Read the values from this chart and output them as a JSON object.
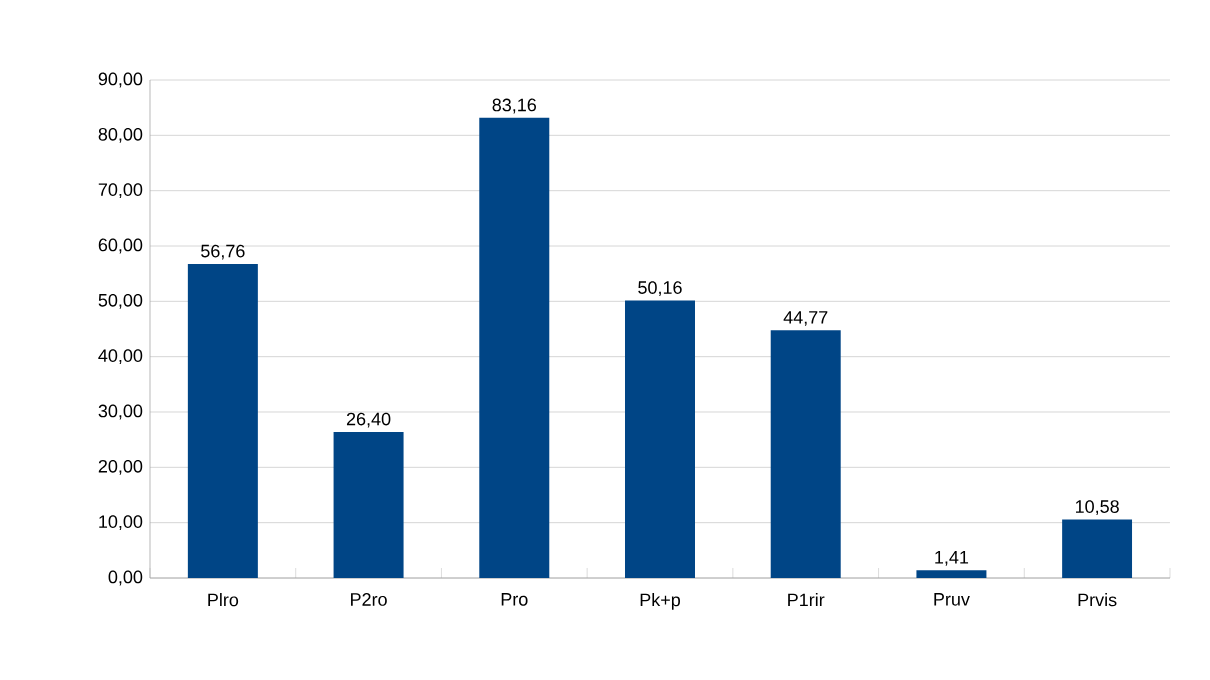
{
  "chart_data": {
    "type": "bar",
    "categories": [
      "Plro",
      "P2ro",
      "Pro",
      "Pk+p",
      "P1rir",
      "Pruv",
      "Prvis"
    ],
    "values": [
      56.76,
      26.4,
      83.16,
      50.16,
      44.77,
      1.41,
      10.58
    ],
    "value_labels": [
      "56,76",
      "26,40",
      "83,16",
      "50,16",
      "44,77",
      "1,41",
      "10,58"
    ],
    "color": "#004586",
    "ylim": [
      0,
      90
    ],
    "yticks": [
      {
        "value": 0,
        "label": "0,00"
      },
      {
        "value": 10,
        "label": "10,00"
      },
      {
        "value": 20,
        "label": "20,00"
      },
      {
        "value": 30,
        "label": "30,00"
      },
      {
        "value": 40,
        "label": "40,00"
      },
      {
        "value": 50,
        "label": "50,00"
      },
      {
        "value": 60,
        "label": "60,00"
      },
      {
        "value": 70,
        "label": "70,00"
      },
      {
        "value": 80,
        "label": "80,00"
      },
      {
        "value": 90,
        "label": "90,00"
      }
    ],
    "grid": "y"
  }
}
